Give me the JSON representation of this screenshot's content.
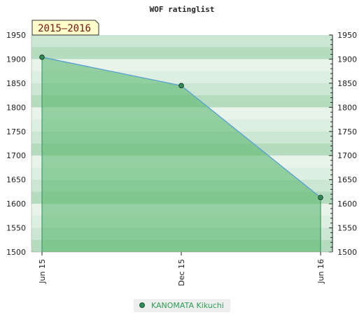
{
  "chart_data": {
    "type": "area",
    "title": "WOF ratinglist",
    "period_label": "2015–2016",
    "x_ticks": [
      "Jun 15",
      "Dec 15",
      "Jun 16"
    ],
    "ylim": [
      1500,
      1950
    ],
    "y_ticks": [
      1500,
      1550,
      1600,
      1650,
      1700,
      1750,
      1800,
      1850,
      1900,
      1950
    ],
    "series": [
      {
        "name": "KANOMATA Kikuchi",
        "x": [
          "Jun 15",
          "Dec 15",
          "Jun 16"
        ],
        "values": [
          1904,
          1845,
          1613
        ]
      }
    ],
    "grid": true,
    "legend_position": "bottom-center",
    "colors": {
      "fill": "#5cb870",
      "line": "#5a9fd4",
      "marker": "#2e8b57",
      "legend_text": "#2e9e55",
      "band_light": "#dcefe1",
      "band_mid": "#b5dcbf",
      "band_white": "#f2f8f3",
      "badge_bg": "#ffffcc",
      "badge_text": "#7a1010"
    }
  }
}
